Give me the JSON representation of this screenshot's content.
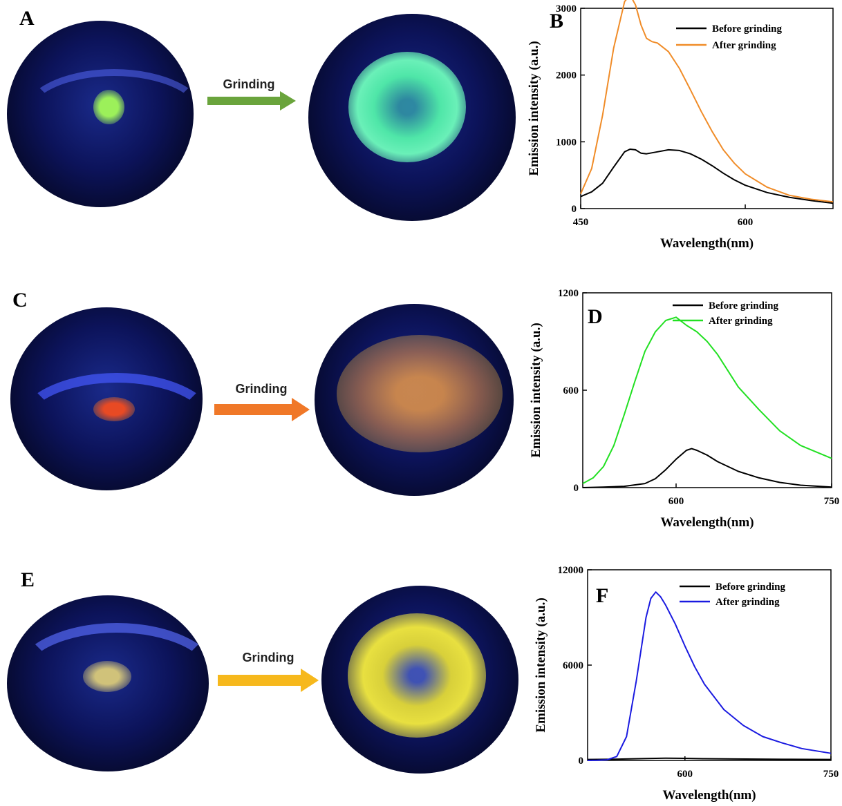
{
  "panels": {
    "a": {
      "letter": "A",
      "arrow_label": "Grinding",
      "arrow_color": "#6aa43c",
      "before_color": "#9cf05a",
      "after_color": "#5df0b0"
    },
    "b": {
      "letter": "B"
    },
    "c": {
      "letter": "C",
      "arrow_label": "Grinding",
      "arrow_color": "#f07828",
      "before_color": "#e8502a",
      "after_color": "#e89a40"
    },
    "d": {
      "letter": "D"
    },
    "e": {
      "letter": "E",
      "arrow_label": "Grinding",
      "arrow_color": "#f6b81c",
      "before_color": "#c8b870",
      "after_color": "#e8e040"
    },
    "f": {
      "letter": "F"
    }
  },
  "chart_data": [
    {
      "type": "line",
      "panel": "B",
      "xlabel": "Wavelength(nm)",
      "ylabel": "Emission intensity (a.u.)",
      "xlim": [
        450,
        680
      ],
      "ylim": [
        0,
        3000
      ],
      "xticks": [
        450,
        600
      ],
      "yticks": [
        0,
        1000,
        2000,
        3000
      ],
      "legend": "top-right",
      "series": [
        {
          "name": "Before grinding",
          "color": "#000000",
          "x": [
            450,
            460,
            470,
            480,
            490,
            495,
            500,
            505,
            510,
            520,
            530,
            540,
            550,
            560,
            570,
            580,
            590,
            600,
            620,
            640,
            660,
            680
          ],
          "y": [
            180,
            250,
            380,
            620,
            850,
            890,
            880,
            830,
            820,
            850,
            880,
            870,
            820,
            740,
            640,
            530,
            430,
            350,
            240,
            170,
            120,
            80
          ]
        },
        {
          "name": "After grinding",
          "color": "#f08c28",
          "x": [
            450,
            460,
            470,
            480,
            490,
            495,
            500,
            505,
            510,
            515,
            520,
            530,
            540,
            550,
            560,
            570,
            580,
            590,
            600,
            620,
            640,
            660,
            680
          ],
          "y": [
            220,
            600,
            1400,
            2400,
            3100,
            3200,
            3050,
            2750,
            2550,
            2500,
            2480,
            2350,
            2100,
            1780,
            1450,
            1150,
            880,
            680,
            520,
            320,
            200,
            140,
            100
          ]
        }
      ]
    },
    {
      "type": "line",
      "panel": "D",
      "xlabel": "Wavelength(nm)",
      "ylabel": "Emission intensity (a.u.)",
      "xlim": [
        510,
        750
      ],
      "ylim": [
        0,
        1200
      ],
      "xticks": [
        600,
        750
      ],
      "yticks": [
        0,
        600,
        1200
      ],
      "legend": "top-right",
      "series": [
        {
          "name": "Before grinding",
          "color": "#000000",
          "x": [
            510,
            530,
            550,
            570,
            580,
            590,
            600,
            610,
            615,
            620,
            630,
            640,
            660,
            680,
            700,
            720,
            750
          ],
          "y": [
            0,
            3,
            8,
            25,
            55,
            110,
            175,
            230,
            240,
            230,
            200,
            160,
            100,
            60,
            32,
            15,
            3
          ]
        },
        {
          "name": "After grinding",
          "color": "#22e022",
          "x": [
            510,
            520,
            530,
            540,
            550,
            560,
            570,
            580,
            590,
            600,
            610,
            620,
            630,
            640,
            650,
            660,
            680,
            700,
            720,
            750
          ],
          "y": [
            25,
            60,
            130,
            260,
            450,
            650,
            840,
            960,
            1030,
            1050,
            1000,
            960,
            900,
            820,
            720,
            620,
            480,
            350,
            260,
            180
          ]
        }
      ]
    },
    {
      "type": "line",
      "panel": "F",
      "xlabel": "Wavelength(nm)",
      "ylabel": "Emission intensity (a.u.)",
      "xlim": [
        500,
        750
      ],
      "ylim": [
        0,
        12000
      ],
      "xticks": [
        600,
        750
      ],
      "yticks": [
        0,
        6000,
        12000
      ],
      "legend": "top-right",
      "series": [
        {
          "name": "Before grinding",
          "color": "#000000",
          "x": [
            500,
            520,
            540,
            560,
            580,
            600,
            620,
            650,
            700,
            750
          ],
          "y": [
            60,
            70,
            90,
            120,
            140,
            130,
            110,
            90,
            70,
            60
          ]
        },
        {
          "name": "After grinding",
          "color": "#1a1ae0",
          "x": [
            500,
            510,
            520,
            530,
            540,
            550,
            560,
            565,
            570,
            575,
            580,
            590,
            600,
            610,
            620,
            640,
            660,
            680,
            700,
            720,
            750
          ],
          "y": [
            0,
            10,
            40,
            250,
            1500,
            5000,
            9000,
            10200,
            10600,
            10300,
            9800,
            8600,
            7200,
            5900,
            4800,
            3200,
            2200,
            1500,
            1100,
            750,
            450
          ]
        }
      ]
    }
  ]
}
